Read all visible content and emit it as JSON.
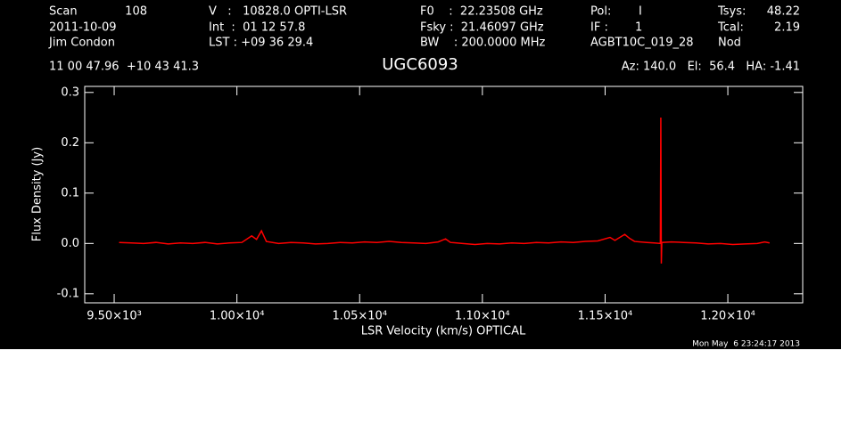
{
  "header": {
    "scan_label": "Scan",
    "scan": "108",
    "date": "2011-10-09",
    "observer": "Jim Condon",
    "v": "V   :   10828.0 OPTI-LSR",
    "int": "Int  :  01 12 57.8",
    "lst": "LST : +09 36 29.4",
    "f0": "F0    :  22.23508 GHz",
    "fsky": "Fsky :  21.46097 GHz",
    "bw": "BW    : 200.0000 MHz",
    "pol_label": "Pol:",
    "pol": "I",
    "if_label": "IF :",
    "if": "1",
    "project": "AGBT10C_019_28",
    "tsys_label": "Tsys:",
    "tsys": "48.22",
    "tcal_label": "Tcal:",
    "tcal": "2.19",
    "mode": "Nod",
    "coords": "11 00 47.96  +10 43 41.3",
    "azel": "Az: 140.0   El:  56.4   HA: -1.41",
    "timestamp": "Mon May  6 23:24:17 2013"
  },
  "chart_data": {
    "type": "line",
    "title": "UGC6093",
    "x_label": "LSR Velocity (km/s) OPTICAL",
    "y_label": "Flux Density (Jy)",
    "color": "#ff0000",
    "x": [
      9520,
      9570,
      9620,
      9670,
      9720,
      9770,
      9820,
      9870,
      9920,
      9970,
      10020,
      10060,
      10080,
      10100,
      10120,
      10170,
      10220,
      10270,
      10320,
      10370,
      10420,
      10470,
      10520,
      10570,
      10620,
      10670,
      10720,
      10770,
      10820,
      10850,
      10870,
      10920,
      10970,
      11020,
      11070,
      11120,
      11170,
      11220,
      11270,
      11320,
      11370,
      11420,
      11470,
      11520,
      11540,
      11580,
      11600,
      11620,
      11670,
      11700,
      11725,
      11727,
      11729,
      11731,
      11770,
      11820,
      11870,
      11920,
      11970,
      12020,
      12070,
      12120,
      12150,
      12170
    ],
    "values": [
      0.002,
      0.001,
      0.0,
      0.002,
      -0.001,
      0.001,
      0.0,
      0.002,
      -0.001,
      0.001,
      0.002,
      0.015,
      0.008,
      0.025,
      0.004,
      0.0,
      0.002,
      0.001,
      -0.001,
      0.0,
      0.002,
      0.001,
      0.003,
      0.002,
      0.004,
      0.002,
      0.001,
      0.0,
      0.003,
      0.009,
      0.002,
      0.0,
      -0.002,
      0.0,
      -0.001,
      0.001,
      0.0,
      0.002,
      0.001,
      0.003,
      0.002,
      0.004,
      0.005,
      0.012,
      0.006,
      0.018,
      0.01,
      0.004,
      0.002,
      0.001,
      0.0,
      0.25,
      -0.04,
      0.002,
      0.003,
      0.002,
      0.001,
      -0.001,
      0.0,
      -0.002,
      -0.001,
      0.0,
      0.003,
      0.001
    ],
    "xlim": [
      9380,
      12305
    ],
    "xticks": [
      {
        "value": 9500,
        "label": "9.50×10³"
      },
      {
        "value": 10000,
        "label": "1.00×10⁴"
      },
      {
        "value": 10500,
        "label": "1.05×10⁴"
      },
      {
        "value": 11000,
        "label": "1.10×10⁴"
      },
      {
        "value": 11500,
        "label": "1.15×10⁴"
      },
      {
        "value": 12000,
        "label": "1.20×10⁴"
      }
    ],
    "ylim": [
      -0.118,
      0.312
    ],
    "yticks": [
      -0.1,
      {
        "value": 0,
        "label": "0.0"
      },
      0.1,
      0.2,
      0.3
    ]
  }
}
